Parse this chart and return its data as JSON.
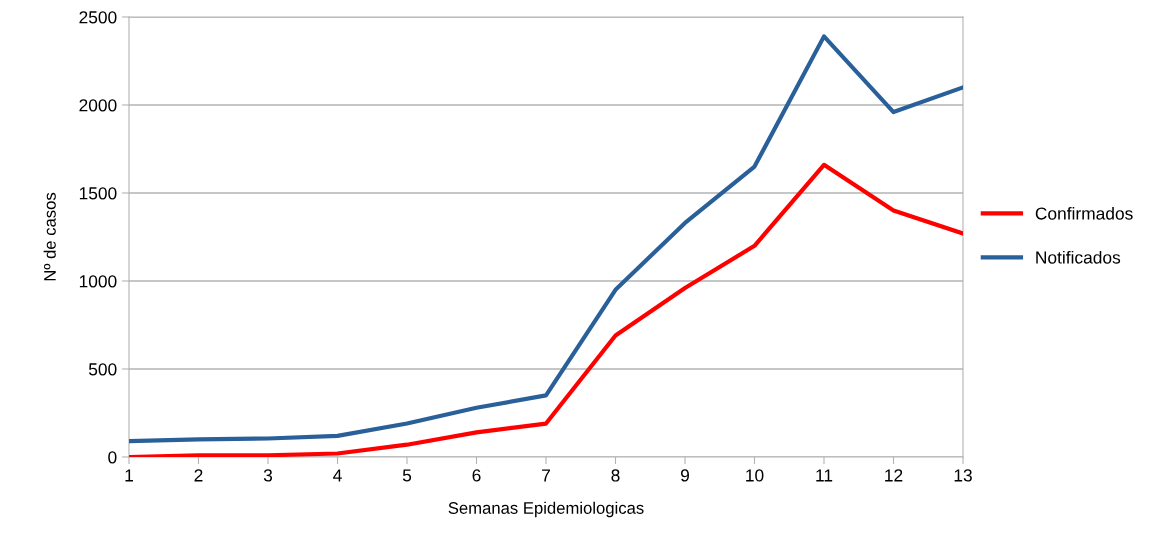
{
  "chart_data": {
    "type": "line",
    "xlabel": "Semanas Epidemiologicas",
    "ylabel": "Nº de casos",
    "x": [
      1,
      2,
      3,
      4,
      5,
      6,
      7,
      8,
      9,
      10,
      11,
      12,
      13
    ],
    "series": [
      {
        "name": "Confirmados",
        "color": "#ff0000",
        "values": [
          0,
          10,
          10,
          20,
          70,
          140,
          190,
          690,
          960,
          1200,
          1660,
          1400,
          1270
        ]
      },
      {
        "name": "Notificados",
        "color": "#2a6099",
        "values": [
          90,
          100,
          105,
          120,
          190,
          280,
          350,
          950,
          1330,
          1650,
          2390,
          1960,
          2100
        ]
      }
    ],
    "xlim": [
      1,
      13
    ],
    "xticks": [
      1,
      2,
      3,
      4,
      5,
      6,
      7,
      8,
      9,
      10,
      11,
      12,
      13
    ],
    "ylim": [
      0,
      2500
    ],
    "yticks": [
      0,
      500,
      1000,
      1500,
      2000,
      2500
    ],
    "grid": "y",
    "legend": "right",
    "marker": "none",
    "line_style": "solid"
  }
}
